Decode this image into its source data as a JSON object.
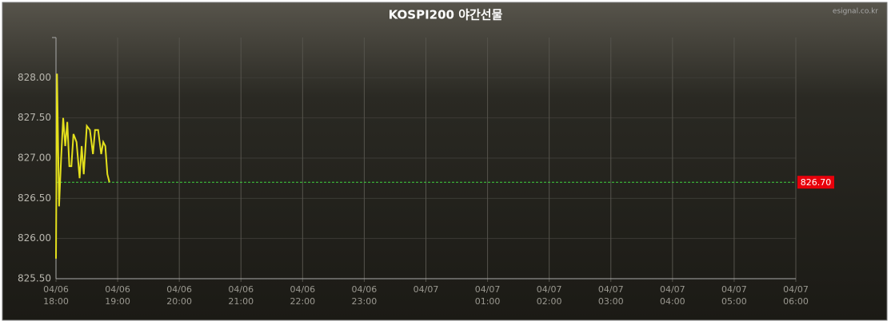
{
  "chart_data": {
    "type": "line",
    "title": "KOSPI200 야간선물",
    "source": "esignal.co.kr",
    "x": [
      "04/06 18:00",
      "04/06 18:01",
      "04/06 18:03",
      "04/06 18:05",
      "04/06 18:07",
      "04/06 18:09",
      "04/06 18:11",
      "04/06 18:13",
      "04/06 18:15",
      "04/06 18:17",
      "04/06 18:20",
      "04/06 18:23",
      "04/06 18:25",
      "04/06 18:27",
      "04/06 18:30",
      "04/06 18:33",
      "04/06 18:36",
      "04/06 18:38",
      "04/06 18:41",
      "04/06 18:44",
      "04/06 18:46",
      "04/06 18:48",
      "04/06 18:50",
      "04/06 18:52"
    ],
    "series": [
      {
        "name": "KOSPI200",
        "color": "#e4e01c",
        "values": [
          825.75,
          828.05,
          826.4,
          827.0,
          827.5,
          827.15,
          827.45,
          826.9,
          826.9,
          827.3,
          827.2,
          826.75,
          827.15,
          826.8,
          827.4,
          827.35,
          827.05,
          827.35,
          827.35,
          827.05,
          827.2,
          827.15,
          826.8,
          826.7
        ]
      }
    ],
    "last_value": 826.7,
    "last_label": "826.70",
    "last_color": "#e8000b",
    "xlim": [
      "04/06 18:00",
      "04/07 06:00"
    ],
    "xticks": [
      {
        "value": "04/06 18:00",
        "label": "04/06 18:00"
      },
      {
        "value": "04/06 19:00",
        "label": "04/06 19:00"
      },
      {
        "value": "04/06 20:00",
        "label": "04/06 20:00"
      },
      {
        "value": "04/06 21:00",
        "label": "04/06 21:00"
      },
      {
        "value": "04/06 22:00",
        "label": "04/06 22:00"
      },
      {
        "value": "04/06 23:00",
        "label": "04/06 23:00"
      },
      {
        "value": "04/07 00:00",
        "label": "04/07"
      },
      {
        "value": "04/07 01:00",
        "label": "04/07 01:00"
      },
      {
        "value": "04/07 02:00",
        "label": "04/07 02:00"
      },
      {
        "value": "04/07 03:00",
        "label": "04/07 03:00"
      },
      {
        "value": "04/07 04:00",
        "label": "04/07 04:00"
      },
      {
        "value": "04/07 05:00",
        "label": "04/07 05:00"
      },
      {
        "value": "04/07 06:00",
        "label": "04/07 06:00"
      }
    ],
    "ylim": [
      825.5,
      828.5
    ],
    "yticks": [
      {
        "value": 825.5,
        "label": "825.50"
      },
      {
        "value": 826,
        "label": "826.00"
      },
      {
        "value": 826.5,
        "label": "826.50"
      },
      {
        "value": 827,
        "label": "827.00"
      },
      {
        "value": 827.5,
        "label": "827.50"
      },
      {
        "value": 828,
        "label": "828.00"
      }
    ],
    "grid": true
  }
}
